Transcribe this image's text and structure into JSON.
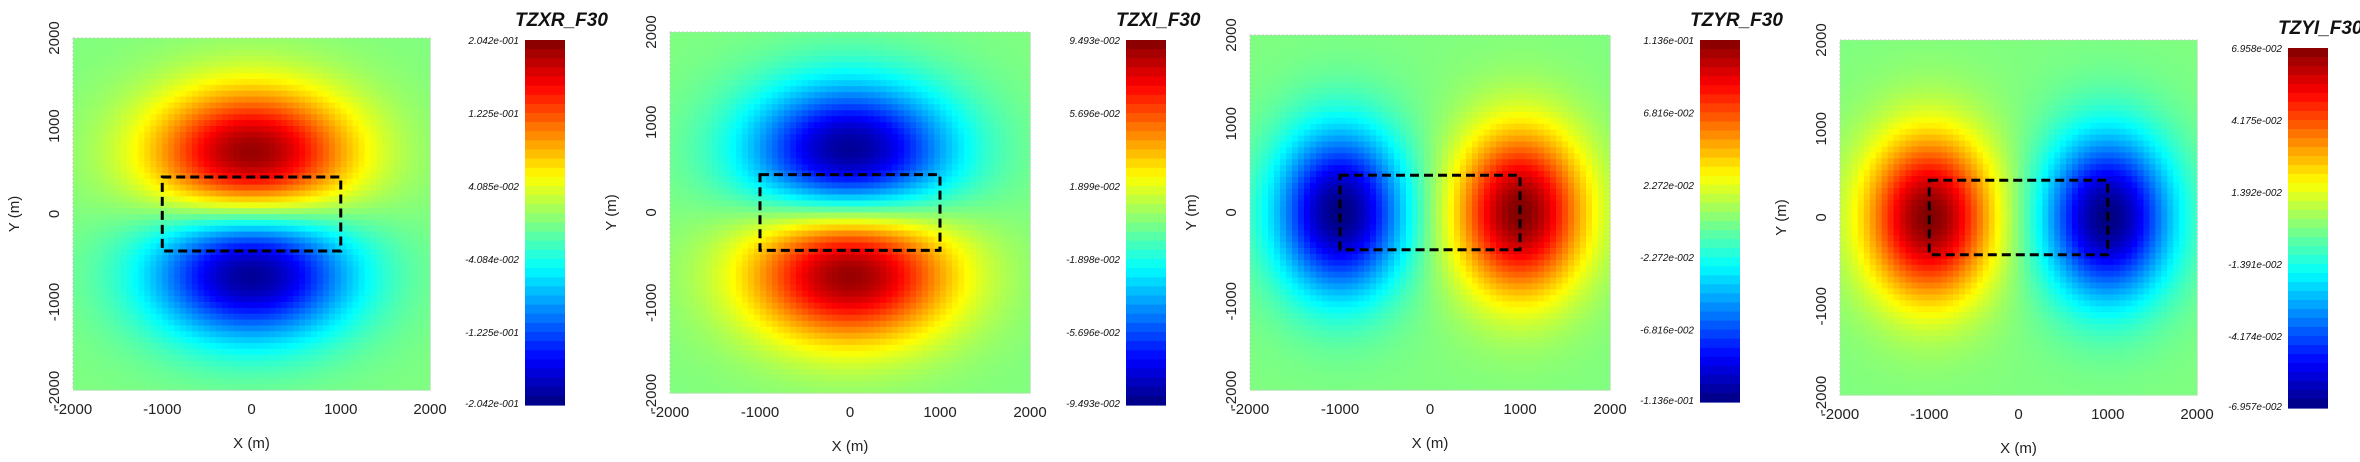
{
  "chart_data": [
    {
      "type": "heatmap",
      "title": "TZXR_F30",
      "xlabel": "X (m)",
      "ylabel": "Y (m)",
      "xlim": [
        -2000,
        2000
      ],
      "ylim": [
        -2000,
        2000
      ],
      "x_ticks": [
        "-2000",
        "-1000",
        "0",
        "1000",
        "2000"
      ],
      "y_ticks": [
        "-2000",
        "-1000",
        "0",
        "1000",
        "2000"
      ],
      "colorbar_labels": [
        "2.042e-001",
        "1.225e-001",
        "4.085e-002",
        "-4.084e-002",
        "-1.225e-001",
        "-2.042e-001"
      ],
      "value_range": [
        -0.2042,
        0.2042
      ],
      "pattern": "dipole-y",
      "sign": 1,
      "anomaly_centers": [
        [
          0,
          650
        ],
        [
          0,
          -650
        ]
      ],
      "rectangle": {
        "x": [
          -1000,
          1000
        ],
        "y": [
          -420,
          420
        ]
      }
    },
    {
      "type": "heatmap",
      "title": "TZXI_F30",
      "xlabel": "X (m)",
      "ylabel": "Y (m)",
      "xlim": [
        -2000,
        2000
      ],
      "ylim": [
        -2000,
        2000
      ],
      "x_ticks": [
        "-2000",
        "-1000",
        "0",
        "1000",
        "2000"
      ],
      "y_ticks": [
        "-2000",
        "-1000",
        "0",
        "1000",
        "2000"
      ],
      "colorbar_labels": [
        "9.493e-002",
        "5.696e-002",
        "1.899e-002",
        "-1.898e-002",
        "-5.696e-002",
        "-9.493e-002"
      ],
      "value_range": [
        -0.09493,
        0.09493
      ],
      "pattern": "dipole-y",
      "sign": -1,
      "anomaly_centers": [
        [
          0,
          700
        ],
        [
          0,
          -700
        ]
      ],
      "rectangle": {
        "x": [
          -1000,
          1000
        ],
        "y": [
          -420,
          420
        ]
      }
    },
    {
      "type": "heatmap",
      "title": "TZYR_F30",
      "xlabel": "X (m)",
      "ylabel": "Y (m)",
      "xlim": [
        -2000,
        2000
      ],
      "ylim": [
        -2000,
        2000
      ],
      "x_ticks": [
        "-2000",
        "-1000",
        "0",
        "1000",
        "2000"
      ],
      "y_ticks": [
        "-2000",
        "-1000",
        "0",
        "1000",
        "2000"
      ],
      "colorbar_labels": [
        "1.136e-001",
        "6.816e-002",
        "2.272e-002",
        "-2.272e-002",
        "-6.816e-002",
        "-1.136e-001"
      ],
      "value_range": [
        -0.1136,
        0.1136
      ],
      "pattern": "dipole-x",
      "sign": 1,
      "anomaly_centers": [
        [
          1000,
          0
        ],
        [
          -1000,
          0
        ]
      ],
      "rectangle": {
        "x": [
          -1000,
          1000
        ],
        "y": [
          -420,
          420
        ]
      }
    },
    {
      "type": "heatmap",
      "title": "TZYI_F30",
      "xlabel": "X (m)",
      "ylabel": "Y (m)",
      "xlim": [
        -2000,
        2000
      ],
      "ylim": [
        -2000,
        2000
      ],
      "x_ticks": [
        "-2000",
        "-1000",
        "0",
        "1000",
        "2000"
      ],
      "y_ticks": [
        "-2000",
        "-1000",
        "0",
        "1000",
        "2000"
      ],
      "colorbar_labels": [
        "6.958e-002",
        "4.175e-002",
        "1.392e-002",
        "-1.391e-002",
        "-4.174e-002",
        "-6.957e-002"
      ],
      "value_range": [
        -0.06957,
        0.06958
      ],
      "pattern": "dipole-x",
      "sign": -1,
      "anomaly_centers": [
        [
          1000,
          0
        ],
        [
          -1000,
          0
        ]
      ],
      "rectangle": {
        "x": [
          -1000,
          1000
        ],
        "y": [
          -420,
          420
        ]
      }
    }
  ]
}
